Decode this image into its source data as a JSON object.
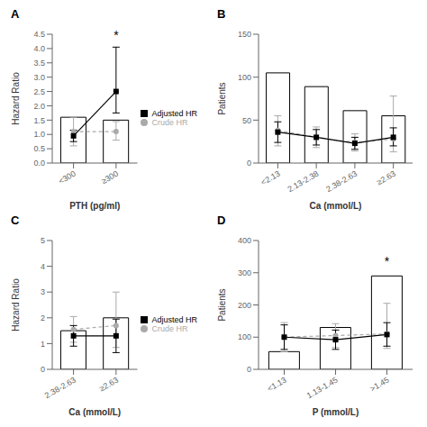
{
  "chart_data": [
    {
      "type": "bar",
      "title": "A",
      "xlabel": "PTH (pg/ml)",
      "ylabel": "Hazard Ratio",
      "categories": [
        "<300",
        "≥300"
      ],
      "ylim": [
        0,
        4.5
      ],
      "yticks": [
        {
          "value": 0,
          "label": "0.0"
        },
        0.5,
        {
          "value": 1,
          "label": "1.0"
        },
        1.5,
        {
          "value": 2,
          "label": "2.0"
        },
        2.5,
        {
          "value": 3,
          "label": "3.0"
        },
        3.5,
        {
          "value": 4,
          "label": "4.0"
        },
        4.5
      ],
      "grid": false,
      "legend": "right",
      "series": [
        {
          "type": "bar",
          "color": "#ffffff",
          "values": [
            1.6,
            1.5
          ]
        },
        {
          "name": "Crude HR",
          "type": "line",
          "color": "#aaaaaa",
          "marker": "circle",
          "line_style": "dashed",
          "values": [
            1.1,
            1.1
          ],
          "low": [
            0.6,
            0.8
          ],
          "high": [
            1.6,
            1.45
          ]
        },
        {
          "name": "Adjusted HR",
          "type": "line",
          "color": "#000000",
          "marker": "square",
          "line_style": "solid",
          "values": [
            0.95,
            2.5
          ],
          "low": [
            0.75,
            1.75
          ],
          "high": [
            1.15,
            4.05
          ]
        }
      ],
      "annotations": [
        {
          "text": "*",
          "category": "≥300",
          "y": 4.08
        }
      ]
    },
    {
      "type": "bar",
      "title": "B",
      "xlabel": "Ca (mmol/L)",
      "ylabel": "Patients",
      "categories": [
        "<2.13",
        "2.13-2.38",
        "2.38-2.63",
        "≥2.63"
      ],
      "ylim": [
        0,
        150
      ],
      "yticks": [
        0,
        50,
        100,
        150
      ],
      "grid": false,
      "series": [
        {
          "type": "bar",
          "color": "#ffffff",
          "values": [
            105,
            89,
            61,
            55
          ]
        },
        {
          "type": "line",
          "color": "#aaaaaa",
          "marker": "circle",
          "line_style": "dashed",
          "values": [
            38,
            30,
            24,
            28
          ],
          "low": [
            20,
            18,
            14,
            13
          ],
          "high": [
            55,
            42,
            34,
            78
          ]
        },
        {
          "type": "line",
          "color": "#000000",
          "marker": "square",
          "line_style": "solid",
          "values": [
            36,
            30,
            23,
            30
          ],
          "low": [
            24,
            21,
            16,
            20
          ],
          "high": [
            48,
            39,
            30,
            41
          ]
        }
      ]
    },
    {
      "type": "bar",
      "title": "C",
      "xlabel": "Ca (mmol/L)",
      "ylabel": "Hazard Ratio",
      "categories": [
        "2.38-2.63",
        "≥2.63"
      ],
      "ylim": [
        0,
        5
      ],
      "yticks": [
        0,
        1,
        2,
        3,
        4,
        5
      ],
      "grid": false,
      "legend": "right",
      "series": [
        {
          "type": "bar",
          "color": "#ffffff",
          "values": [
            1.5,
            2.0
          ]
        },
        {
          "name": "Crude HR",
          "type": "line",
          "color": "#aaaaaa",
          "marker": "circle",
          "line_style": "dashed",
          "values": [
            1.55,
            1.7
          ],
          "low": [
            1.05,
            0.85
          ],
          "high": [
            2.05,
            3.0
          ]
        },
        {
          "name": "Adjusted HR",
          "type": "line",
          "color": "#000000",
          "marker": "square",
          "line_style": "solid",
          "values": [
            1.3,
            1.3
          ],
          "low": [
            0.9,
            0.65
          ],
          "high": [
            1.7,
            1.95
          ]
        }
      ]
    },
    {
      "type": "bar",
      "title": "D",
      "xlabel": "P (mmol/L)",
      "ylabel": "Patients",
      "categories": [
        "<1.13",
        "1.13-1.45",
        ">1.45"
      ],
      "ylim": [
        0,
        400
      ],
      "yticks": [
        0,
        100,
        200,
        300,
        400
      ],
      "grid": false,
      "series": [
        {
          "type": "bar",
          "color": "#ffffff",
          "values": [
            55,
            130,
            290
          ]
        },
        {
          "type": "line",
          "color": "#aaaaaa",
          "marker": "circle",
          "line_style": "dashed",
          "values": [
            100,
            105,
            110
          ],
          "low": [
            55,
            68,
            65
          ],
          "high": [
            145,
            142,
            205
          ]
        },
        {
          "type": "line",
          "color": "#000000",
          "marker": "square",
          "line_style": "solid",
          "values": [
            100,
            92,
            108
          ],
          "low": [
            62,
            62,
            72
          ],
          "high": [
            138,
            122,
            145
          ]
        }
      ],
      "annotations": [
        {
          "text": "*",
          "category": ">1.45",
          "y": 302
        }
      ]
    }
  ]
}
